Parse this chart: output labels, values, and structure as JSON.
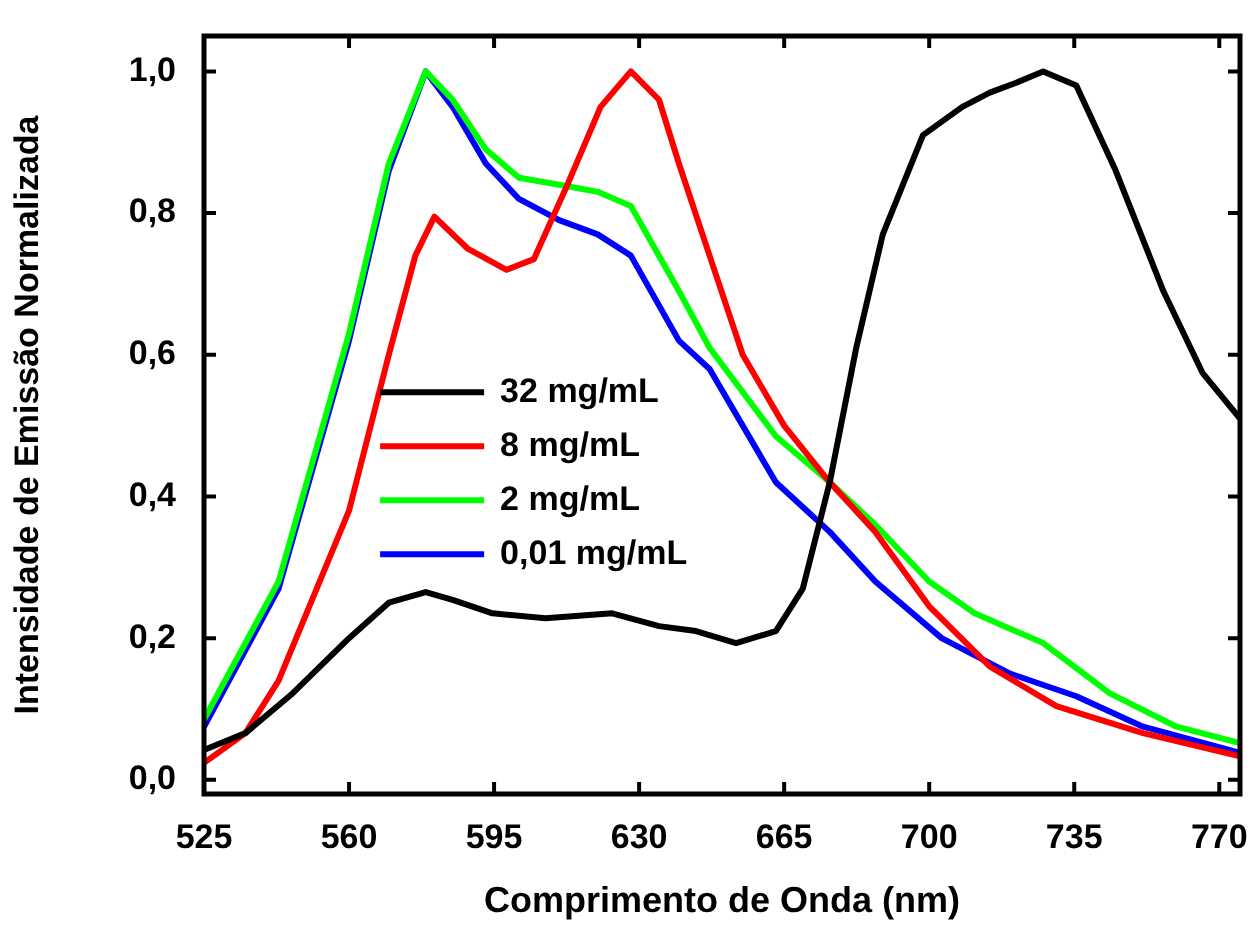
{
  "chart_data": {
    "type": "line",
    "xlabel": "Comprimento de Onda (nm)",
    "ylabel": "Intensidade de Emissão Normalizada",
    "xlim": [
      525,
      775
    ],
    "xticks": [
      525,
      560,
      595,
      630,
      665,
      700,
      735,
      770
    ],
    "ylim": [
      -0.02,
      1.05
    ],
    "yticks": [
      {
        "value": 0,
        "label": "0,0"
      },
      {
        "value": 0.2,
        "label": "0,2"
      },
      {
        "value": 0.4,
        "label": "0,4"
      },
      {
        "value": 0.6,
        "label": "0,6"
      },
      {
        "value": 0.8,
        "label": "0,8"
      },
      {
        "value": 1,
        "label": "1,0"
      }
    ],
    "grid": false,
    "legend": "center left",
    "marker": "none",
    "line_style": "solid",
    "series": [
      {
        "name": "32 mg/mL",
        "color": "#000000",
        "x": [
          525,
          535,
          546,
          560,
          569.6,
          578.5,
          585,
          594.6,
          607.4,
          623.5,
          634.8,
          643.7,
          653.4,
          663,
          669.5,
          676,
          682.4,
          688.8,
          698.5,
          708,
          714.6,
          721,
          727.5,
          735.5,
          745,
          756.5,
          766,
          775
        ],
        "values": [
          0.042,
          0.066,
          0.12,
          0.2,
          0.25,
          0.265,
          0.254,
          0.235,
          0.228,
          0.235,
          0.217,
          0.21,
          0.193,
          0.21,
          0.27,
          0.42,
          0.61,
          0.77,
          0.91,
          0.95,
          0.97,
          0.984,
          1.0,
          0.98,
          0.86,
          0.69,
          0.574,
          0.51
        ]
      },
      {
        "name": "8 mg/mL",
        "color": "#ff0000",
        "x": [
          525,
          535,
          543,
          560,
          569.6,
          576,
          580.6,
          588.6,
          598,
          604.6,
          612.7,
          620.7,
          628,
          634.8,
          639.6,
          647,
          655,
          665,
          676,
          687,
          700,
          714.6,
          730.7,
          751.6,
          775
        ],
        "values": [
          0.024,
          0.066,
          0.14,
          0.38,
          0.6,
          0.74,
          0.795,
          0.75,
          0.72,
          0.735,
          0.84,
          0.95,
          1.0,
          0.96,
          0.87,
          0.74,
          0.6,
          0.5,
          0.42,
          0.35,
          0.245,
          0.16,
          0.104,
          0.066,
          0.033
        ]
      },
      {
        "name": "2 mg/mL",
        "color": "#00ff00",
        "x": [
          525,
          543,
          560,
          569.6,
          578.5,
          585,
          593,
          601,
          610.7,
          620,
          628,
          639.6,
          647,
          663,
          676,
          687,
          700,
          711,
          727.5,
          743.6,
          759.7,
          775
        ],
        "values": [
          0.085,
          0.28,
          0.63,
          0.87,
          1.0,
          0.96,
          0.89,
          0.85,
          0.84,
          0.83,
          0.81,
          0.69,
          0.61,
          0.485,
          0.42,
          0.36,
          0.28,
          0.235,
          0.193,
          0.122,
          0.075,
          0.052
        ]
      },
      {
        "name": "0,01 mg/mL",
        "color": "#0000ff",
        "x": [
          525,
          543,
          560,
          569.6,
          578.5,
          585,
          593,
          601,
          610.7,
          620,
          628,
          639.6,
          647,
          663,
          676,
          687,
          703,
          719.5,
          735.5,
          751.6,
          775
        ],
        "values": [
          0.075,
          0.27,
          0.62,
          0.86,
          1.0,
          0.95,
          0.87,
          0.82,
          0.79,
          0.77,
          0.74,
          0.62,
          0.58,
          0.42,
          0.35,
          0.28,
          0.2,
          0.15,
          0.118,
          0.075,
          0.038
        ]
      }
    ]
  }
}
